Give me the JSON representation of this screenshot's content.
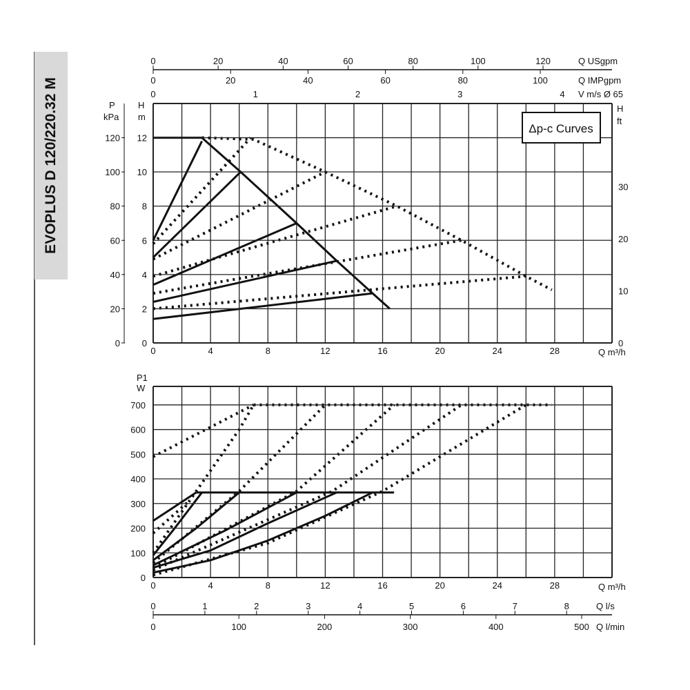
{
  "product_title": "EVOPLUS D 120/220.32 M",
  "chart_data": [
    {
      "type": "line",
      "title": "",
      "legend_box": "Δp-c Curves",
      "x_unit": "Q m³/h",
      "xlim": [
        0,
        32
      ],
      "x_ticks": [
        0,
        4,
        8,
        12,
        16,
        20,
        24,
        28
      ],
      "y_left_units": [
        "P",
        "kPa",
        "H",
        "m"
      ],
      "ylim": [
        0,
        14
      ],
      "y_ticks_m": [
        0,
        2,
        4,
        6,
        8,
        10,
        12
      ],
      "y_ticks_kpa": [
        0,
        20,
        40,
        60,
        80,
        100,
        120
      ],
      "y_right_unit": [
        "H",
        "ft"
      ],
      "y_ticks_ft": [
        0,
        10,
        20,
        30
      ],
      "top_axes": [
        {
          "label": "Q USgpm",
          "ticks": [
            0,
            20,
            40,
            60,
            80,
            100,
            120
          ]
        },
        {
          "label": "Q IMPgpm",
          "ticks": [
            0,
            20,
            40,
            60,
            80,
            100
          ]
        },
        {
          "label": "V m/s Ø 65",
          "ticks": [
            0,
            1,
            2,
            3,
            4
          ]
        }
      ],
      "grid": true,
      "series": [
        {
          "style": "solid",
          "points": [
            [
              0,
              12
            ],
            [
              3.4,
              12
            ],
            [
              6.1,
              10
            ],
            [
              10,
              7
            ],
            [
              12.8,
              4.8
            ],
            [
              15.3,
              2.9
            ],
            [
              16.5,
              2
            ]
          ]
        },
        {
          "style": "solid",
          "points": [
            [
              0,
              6
            ],
            [
              3.4,
              11.8
            ]
          ]
        },
        {
          "style": "solid",
          "points": [
            [
              0,
              5
            ],
            [
              6.1,
              10
            ]
          ]
        },
        {
          "style": "solid",
          "points": [
            [
              0,
              3.4
            ],
            [
              10,
              7
            ]
          ]
        },
        {
          "style": "solid",
          "points": [
            [
              0,
              2.4
            ],
            [
              12.8,
              4.8
            ]
          ]
        },
        {
          "style": "solid",
          "points": [
            [
              0,
              1.4
            ],
            [
              15.3,
              2.9
            ]
          ]
        },
        {
          "style": "dotted",
          "points": [
            [
              3.4,
              12
            ],
            [
              7,
              11.9
            ],
            [
              12,
              10
            ],
            [
              17,
              8
            ],
            [
              21.5,
              6
            ],
            [
              26,
              3.9
            ],
            [
              27.8,
              3.1
            ]
          ]
        },
        {
          "style": "dotted",
          "points": [
            [
              0,
              5.8
            ],
            [
              6.8,
              12
            ]
          ]
        },
        {
          "style": "dotted",
          "points": [
            [
              0,
              4.9
            ],
            [
              12,
              10
            ]
          ]
        },
        {
          "style": "dotted",
          "points": [
            [
              0,
              3.9
            ],
            [
              17,
              8
            ]
          ]
        },
        {
          "style": "dotted",
          "points": [
            [
              0,
              2.9
            ],
            [
              21.5,
              6
            ]
          ]
        },
        {
          "style": "dotted",
          "points": [
            [
              0,
              2
            ],
            [
              26,
              3.9
            ]
          ]
        }
      ]
    },
    {
      "type": "line",
      "title": "",
      "x_unit": "Q m³/h",
      "xlim": [
        0,
        32
      ],
      "x_ticks": [
        0,
        4,
        8,
        12,
        16,
        20,
        24,
        28
      ],
      "y_units": [
        "P1",
        "W"
      ],
      "ylim": [
        0,
        775
      ],
      "y_ticks": [
        0,
        100,
        200,
        300,
        400,
        500,
        600,
        700
      ],
      "bottom_axes": [
        {
          "label": "Q l/s",
          "ticks": [
            0,
            1,
            2,
            3,
            4,
            5,
            6,
            7,
            8
          ]
        },
        {
          "label": "Q l/min",
          "ticks": [
            0,
            100,
            200,
            300,
            400,
            500
          ]
        }
      ],
      "grid": true,
      "series": [
        {
          "style": "solid",
          "points": [
            [
              3,
              345
            ],
            [
              16.8,
              345
            ]
          ]
        },
        {
          "style": "solid",
          "points": [
            [
              0,
              230
            ],
            [
              3,
              345
            ]
          ]
        },
        {
          "style": "solid",
          "points": [
            [
              0,
              90
            ],
            [
              1.5,
              200
            ],
            [
              3.4,
              345
            ]
          ]
        },
        {
          "style": "solid",
          "points": [
            [
              0,
              70
            ],
            [
              3,
              200
            ],
            [
              6,
              345
            ]
          ]
        },
        {
          "style": "solid",
          "points": [
            [
              0,
              50
            ],
            [
              5,
              190
            ],
            [
              10,
              345
            ]
          ]
        },
        {
          "style": "solid",
          "points": [
            [
              0,
              40
            ],
            [
              4,
              110
            ],
            [
              8,
              220
            ],
            [
              12.8,
              345
            ]
          ]
        },
        {
          "style": "solid",
          "points": [
            [
              0,
              20
            ],
            [
              4,
              70
            ],
            [
              8,
              150
            ],
            [
              12,
              250
            ],
            [
              15.3,
              345
            ]
          ]
        },
        {
          "style": "dotted",
          "points": [
            [
              7,
              700
            ],
            [
              27.8,
              700
            ]
          ]
        },
        {
          "style": "dotted",
          "points": [
            [
              0,
              490
            ],
            [
              7,
              700
            ]
          ]
        },
        {
          "style": "dotted",
          "points": [
            [
              0,
              180
            ],
            [
              2.5,
              310
            ]
          ]
        },
        {
          "style": "dotted",
          "points": [
            [
              0,
              100
            ],
            [
              3,
              350
            ],
            [
              6,
              600
            ],
            [
              7,
              700
            ]
          ]
        },
        {
          "style": "dotted",
          "points": [
            [
              0,
              60
            ],
            [
              6,
              350
            ],
            [
              12,
              700
            ]
          ]
        },
        {
          "style": "dotted",
          "points": [
            [
              0,
              40
            ],
            [
              10,
              350
            ],
            [
              16.8,
              700
            ]
          ]
        },
        {
          "style": "dotted",
          "points": [
            [
              0,
              30
            ],
            [
              12.5,
              350
            ],
            [
              21.5,
              700
            ]
          ]
        },
        {
          "style": "dotted",
          "points": [
            [
              0,
              10
            ],
            [
              8,
              140
            ],
            [
              16,
              350
            ],
            [
              26,
              700
            ]
          ]
        }
      ]
    }
  ]
}
